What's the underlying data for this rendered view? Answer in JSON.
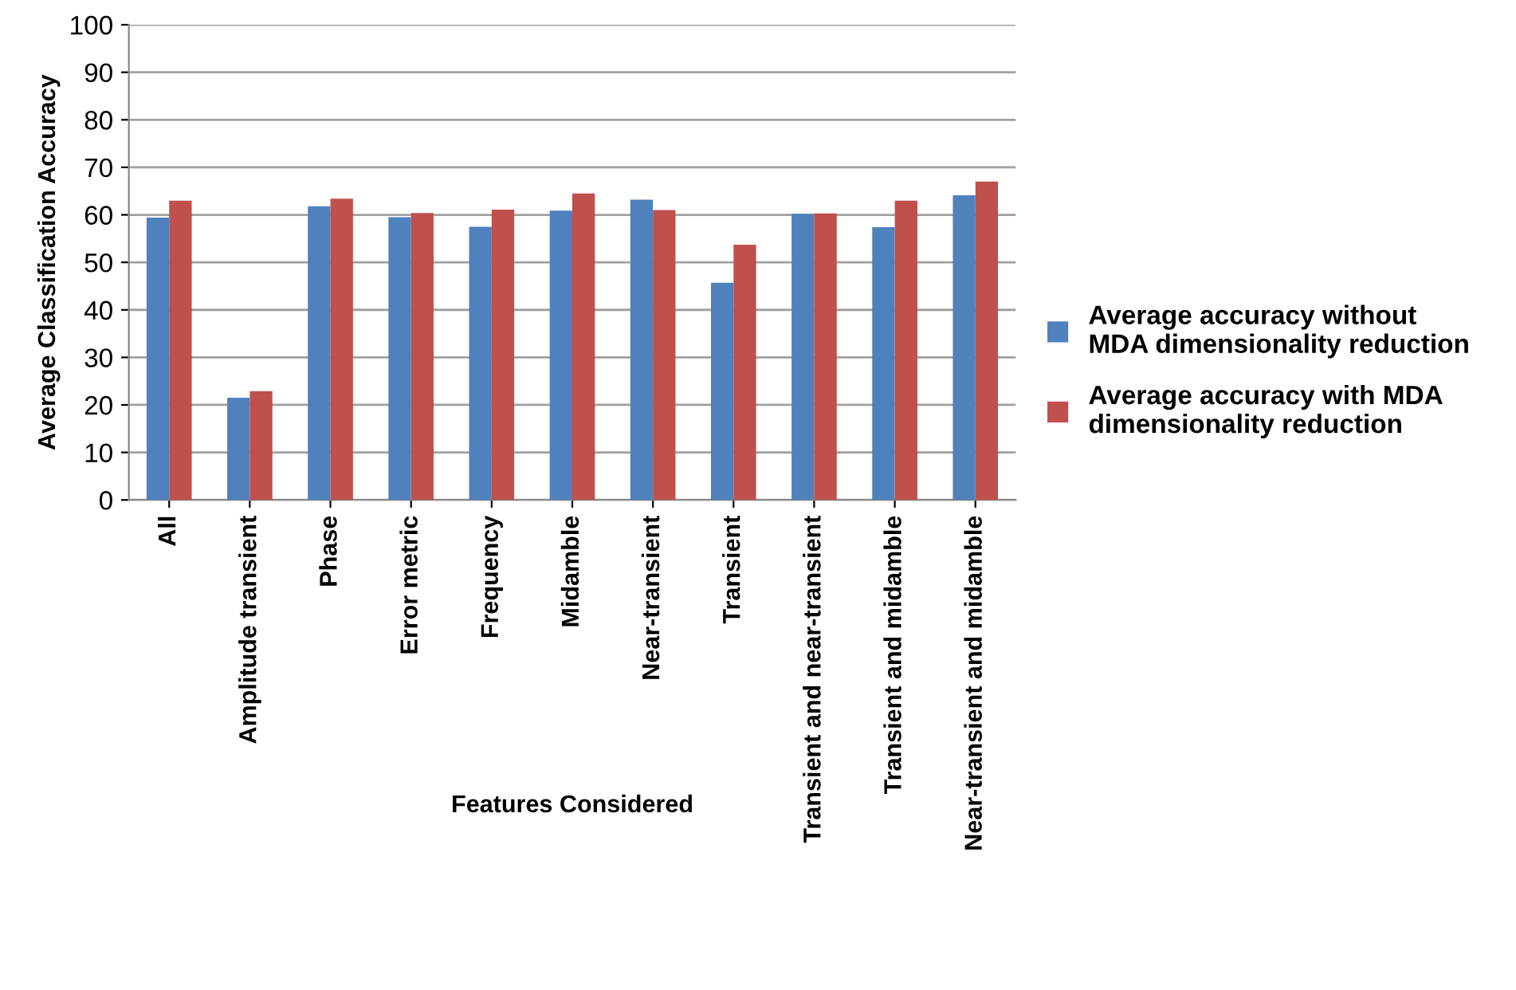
{
  "chart_data": {
    "type": "bar",
    "xlabel": "Features Considered",
    "ylabel": "Average Classification Accuracy",
    "categories": [
      "All",
      "Amplitude transient",
      "Phase",
      "Error metric",
      "Frequency",
      "Midamble",
      "Near-transient",
      "Transient",
      "Transient and near-transient",
      "Transient and midamble",
      "Near-transient and midamble"
    ],
    "series": [
      {
        "name": "Average accuracy without MDA dimensionality reduction",
        "color": "#4f81bd",
        "values": [
          59.4,
          21.5,
          61.8,
          59.5,
          57.5,
          60.9,
          63.2,
          45.7,
          60.2,
          57.4,
          64.1
        ]
      },
      {
        "name": "Average accuracy with MDA dimensionality reduction",
        "color": "#c0504d",
        "values": [
          63.0,
          22.9,
          63.4,
          60.4,
          61.1,
          64.5,
          61.0,
          53.7,
          60.3,
          63.0,
          67.0
        ]
      }
    ],
    "ylim": [
      0,
      100
    ],
    "yticks": [
      0,
      10,
      20,
      30,
      40,
      50,
      60,
      70,
      80,
      90,
      100
    ],
    "grid": "y",
    "legend": "right"
  }
}
